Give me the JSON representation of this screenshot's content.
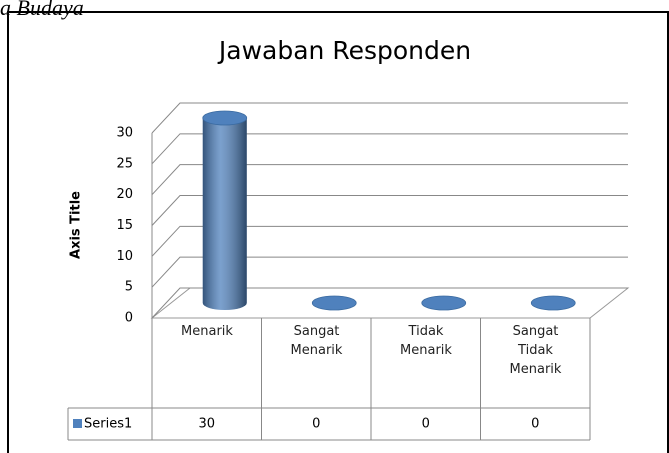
{
  "caption": "a Budaya",
  "chart_data": {
    "type": "bar3d",
    "title": "Jawaban Responden",
    "y_axis_title": "Axis Title",
    "categories": [
      "Menarik",
      "Sangat Menarik",
      "Tidak Menarik",
      "Sangat Tidak Menarik"
    ],
    "series": [
      {
        "name": "Series1",
        "color": "#4f81bd",
        "values": [
          30,
          0,
          0,
          0
        ]
      }
    ],
    "ylim": [
      0,
      30
    ],
    "yticks": [
      0,
      5,
      10,
      15,
      20,
      25,
      30
    ],
    "grid": true,
    "data_table": true
  }
}
